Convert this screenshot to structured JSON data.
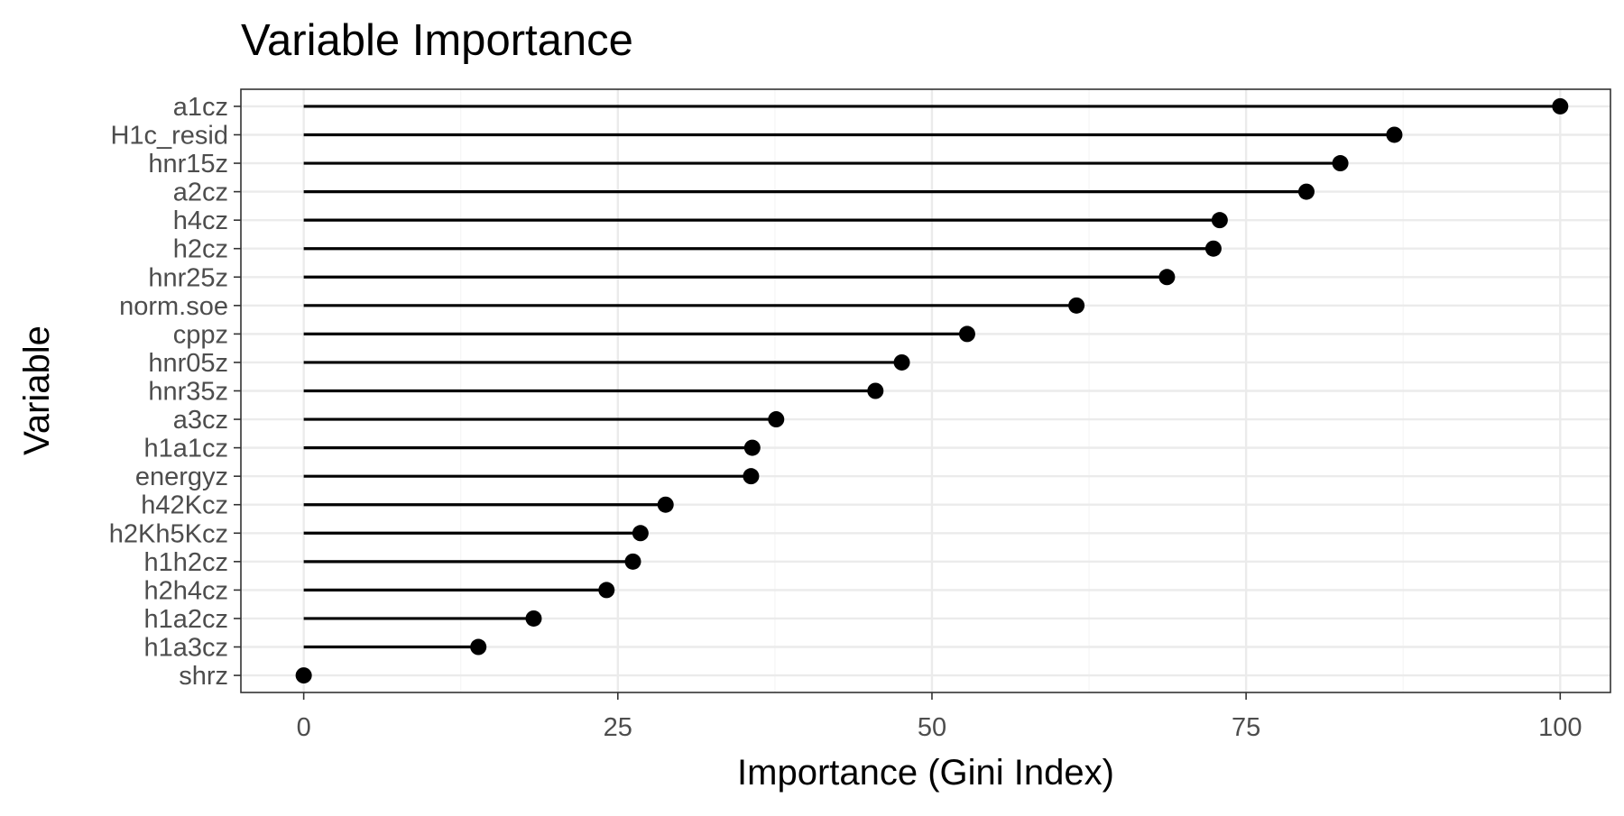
{
  "chart_data": {
    "type": "lollipop",
    "title": "Variable Importance",
    "xlabel": "Importance (Gini Index)",
    "ylabel": "Variable",
    "xlim": [
      -5,
      104
    ],
    "x_ticks": [
      0,
      25,
      50,
      75,
      100
    ],
    "x_tick_labels": [
      "0",
      "25",
      "50",
      "75",
      "100"
    ],
    "grid": true,
    "legend": "none",
    "categories": [
      "a1cz",
      "H1c_resid",
      "hnr15z",
      "a2cz",
      "h4cz",
      "h2cz",
      "hnr25z",
      "norm.soe",
      "cppz",
      "hnr05z",
      "hnr35z",
      "a3cz",
      "h1a1cz",
      "energyz",
      "h42Kcz",
      "h2Kh5Kcz",
      "h1h2cz",
      "h2h4cz",
      "h1a2cz",
      "h1a3cz",
      "shrz"
    ],
    "values": [
      100,
      86.8,
      82.5,
      79.8,
      72.9,
      72.4,
      68.7,
      61.5,
      52.8,
      47.6,
      45.5,
      37.6,
      35.7,
      35.6,
      28.8,
      26.8,
      26.2,
      24.1,
      18.3,
      13.9,
      0
    ],
    "colors": {
      "point": "#000000",
      "segment": "#000000",
      "grid_major": "#ebebeb",
      "grid_minor": "#f5f5f5",
      "panel_border": "#333333",
      "tick_text": "#4d4d4d"
    }
  }
}
